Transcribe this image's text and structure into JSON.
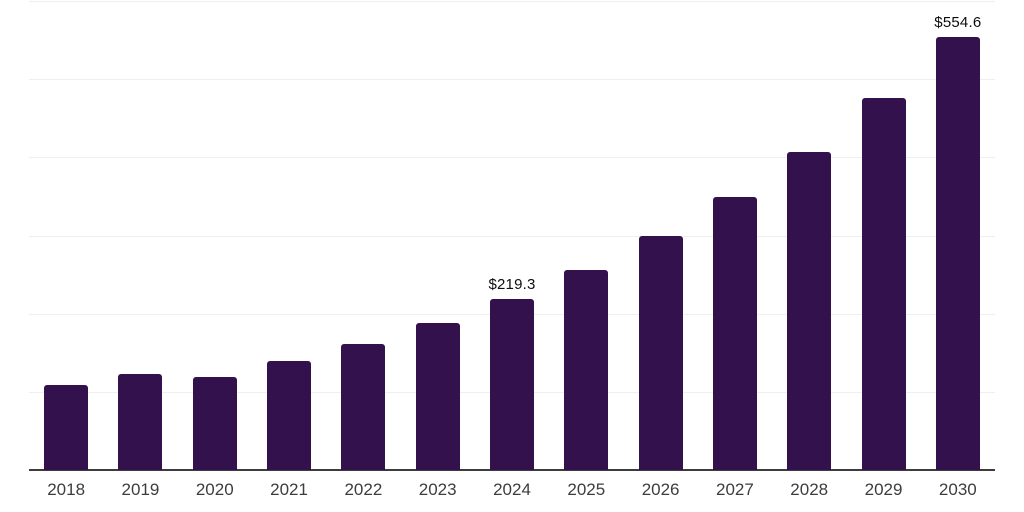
{
  "chart_data": {
    "type": "bar",
    "title": "",
    "xlabel": "",
    "ylabel": "",
    "categories": [
      "2018",
      "2019",
      "2020",
      "2021",
      "2022",
      "2023",
      "2024",
      "2025",
      "2026",
      "2027",
      "2028",
      "2029",
      "2030"
    ],
    "values": [
      108.5,
      122.9,
      118.6,
      139.2,
      161.2,
      187.9,
      219.3,
      256.0,
      298.8,
      348.8,
      407.2,
      475.3,
      554.6
    ],
    "value_labels": [
      {
        "category": "2024",
        "text": "$219.3"
      },
      {
        "category": "2030",
        "text": "$554.6"
      }
    ],
    "ylim": [
      0,
      600
    ],
    "gridline_values": [
      100,
      200,
      300,
      400,
      500,
      600
    ],
    "grid": true,
    "legend": false,
    "y_tick_labels_visible": false,
    "colors": {
      "bar": "#33114d",
      "gridline": "#efefef",
      "axis_line": "#3d3d3d",
      "x_tick_label": "#3d3d3d",
      "value_label": "#0d0d0d",
      "background": "#ffffff"
    }
  }
}
